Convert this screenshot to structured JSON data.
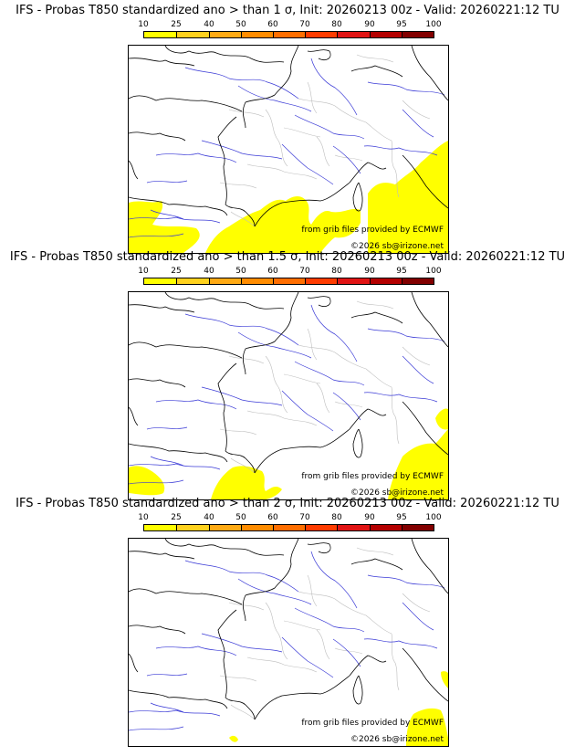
{
  "legend_colors": [
    "#ffff00",
    "#ffd21e",
    "#ffaa14",
    "#ff8c00",
    "#ff6e00",
    "#ff3c00",
    "#e11414",
    "#b40000",
    "#820000",
    "#5a0000"
  ],
  "legend_ticks": [
    "10",
    "25",
    "40",
    "50",
    "60",
    "70",
    "80",
    "90",
    "95",
    "100"
  ],
  "panels": [
    {
      "title": "IFS - Probas T850  standardized ano > than 1 σ, Init: 20260213 00z - Valid: 20260221:12 TU",
      "credit_line1": "from grib files provided by ECMWF",
      "credit_line2": "©2026 sb@irizone.net",
      "coverage": "large"
    },
    {
      "title": "IFS - Probas T850  standardized ano > than 1.5 σ, Init: 20260213 00z - Valid: 20260221:12 TU",
      "credit_line1": "from grib files provided by ECMWF",
      "credit_line2": "©2026 sb@irizone.net",
      "coverage": "medium"
    },
    {
      "title": "IFS - Probas T850  standardized ano > than 2 σ, Init: 20260213 00z - Valid: 20260221:12 TU",
      "credit_line1": "from grib files provided by ECMWF",
      "credit_line2": "©2026 sb@irizone.net",
      "coverage": "small"
    }
  ]
}
